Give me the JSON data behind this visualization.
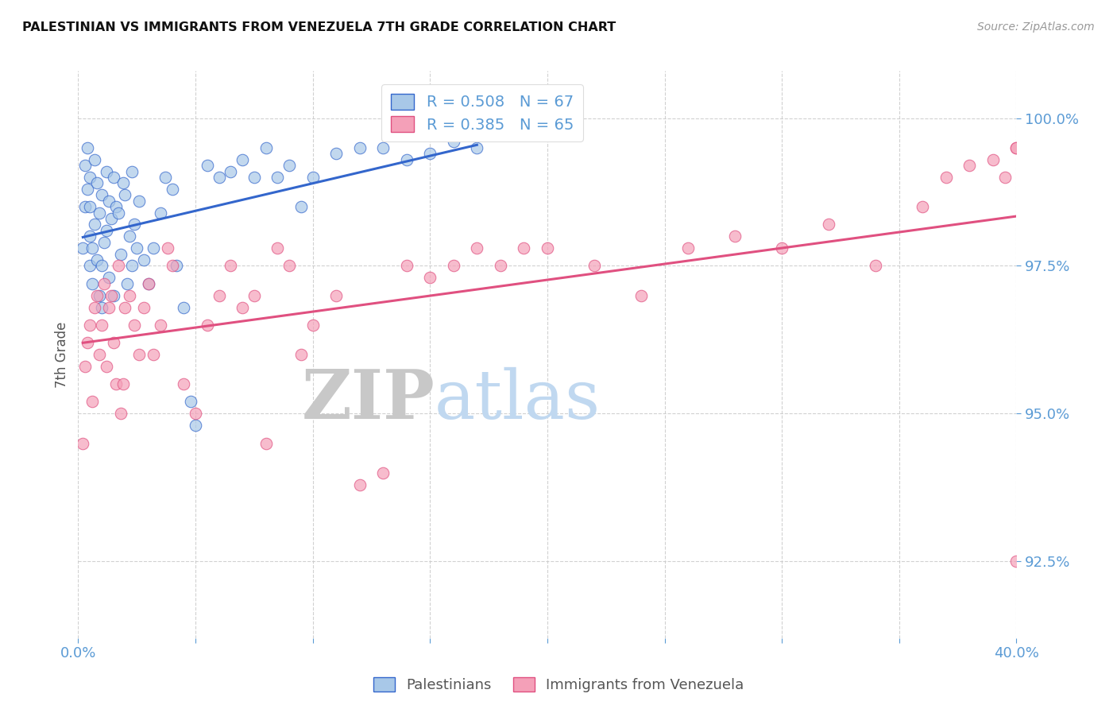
{
  "title": "PALESTINIAN VS IMMIGRANTS FROM VENEZUELA 7TH GRADE CORRELATION CHART",
  "source": "Source: ZipAtlas.com",
  "ylabel": "7th Grade",
  "ytick_vals": [
    92.5,
    95.0,
    97.5,
    100.0
  ],
  "xmin": 0.0,
  "xmax": 40.0,
  "ymin": 91.2,
  "ymax": 100.8,
  "blue_R": 0.508,
  "blue_N": 67,
  "pink_R": 0.385,
  "pink_N": 65,
  "legend_label_blue": "Palestinians",
  "legend_label_pink": "Immigrants from Venezuela",
  "dot_color_blue": "#a8c8e8",
  "dot_color_pink": "#f4a0b8",
  "line_color_blue": "#3366cc",
  "line_color_pink": "#e05080",
  "title_color": "#111111",
  "axis_label_color": "#5b9bd5",
  "watermark_zip": "ZIP",
  "watermark_atlas": "atlas",
  "watermark_color_zip": "#c8c8c8",
  "watermark_color_atlas": "#c0d8f0",
  "background_color": "#ffffff",
  "grid_color": "#cccccc",
  "blue_x": [
    0.2,
    0.3,
    0.3,
    0.4,
    0.4,
    0.5,
    0.5,
    0.5,
    0.5,
    0.6,
    0.6,
    0.7,
    0.7,
    0.8,
    0.8,
    0.9,
    0.9,
    1.0,
    1.0,
    1.0,
    1.1,
    1.2,
    1.2,
    1.3,
    1.3,
    1.4,
    1.5,
    1.5,
    1.6,
    1.7,
    1.8,
    1.9,
    2.0,
    2.1,
    2.2,
    2.3,
    2.3,
    2.4,
    2.5,
    2.6,
    2.8,
    3.0,
    3.2,
    3.5,
    3.7,
    4.0,
    4.2,
    4.5,
    4.8,
    5.0,
    5.5,
    6.0,
    6.5,
    7.0,
    7.5,
    8.0,
    8.5,
    9.0,
    9.5,
    10.0,
    11.0,
    12.0,
    13.0,
    14.0,
    15.0,
    16.0,
    17.0
  ],
  "blue_y": [
    97.8,
    98.5,
    99.2,
    98.8,
    99.5,
    97.5,
    98.0,
    98.5,
    99.0,
    97.2,
    97.8,
    98.2,
    99.3,
    97.6,
    98.9,
    97.0,
    98.4,
    96.8,
    97.5,
    98.7,
    97.9,
    98.1,
    99.1,
    97.3,
    98.6,
    98.3,
    97.0,
    99.0,
    98.5,
    98.4,
    97.7,
    98.9,
    98.7,
    97.2,
    98.0,
    97.5,
    99.1,
    98.2,
    97.8,
    98.6,
    97.6,
    97.2,
    97.8,
    98.4,
    99.0,
    98.8,
    97.5,
    96.8,
    95.2,
    94.8,
    99.2,
    99.0,
    99.1,
    99.3,
    99.0,
    99.5,
    99.0,
    99.2,
    98.5,
    99.0,
    99.4,
    99.5,
    99.5,
    99.3,
    99.4,
    99.6,
    99.5
  ],
  "pink_x": [
    0.2,
    0.3,
    0.4,
    0.5,
    0.6,
    0.7,
    0.8,
    0.9,
    1.0,
    1.1,
    1.2,
    1.3,
    1.4,
    1.5,
    1.6,
    1.7,
    1.8,
    1.9,
    2.0,
    2.2,
    2.4,
    2.6,
    2.8,
    3.0,
    3.2,
    3.5,
    3.8,
    4.0,
    4.5,
    5.0,
    5.5,
    6.0,
    6.5,
    7.0,
    7.5,
    8.0,
    8.5,
    9.0,
    9.5,
    10.0,
    11.0,
    12.0,
    13.0,
    14.0,
    15.0,
    16.0,
    17.0,
    18.0,
    19.0,
    20.0,
    22.0,
    24.0,
    26.0,
    28.0,
    30.0,
    32.0,
    34.0,
    36.0,
    37.0,
    38.0,
    39.0,
    39.5,
    40.0,
    40.0,
    40.0
  ],
  "pink_y": [
    94.5,
    95.8,
    96.2,
    96.5,
    95.2,
    96.8,
    97.0,
    96.0,
    96.5,
    97.2,
    95.8,
    96.8,
    97.0,
    96.2,
    95.5,
    97.5,
    95.0,
    95.5,
    96.8,
    97.0,
    96.5,
    96.0,
    96.8,
    97.2,
    96.0,
    96.5,
    97.8,
    97.5,
    95.5,
    95.0,
    96.5,
    97.0,
    97.5,
    96.8,
    97.0,
    94.5,
    97.8,
    97.5,
    96.0,
    96.5,
    97.0,
    93.8,
    94.0,
    97.5,
    97.3,
    97.5,
    97.8,
    97.5,
    97.8,
    97.8,
    97.5,
    97.0,
    97.8,
    98.0,
    97.8,
    98.2,
    97.5,
    98.5,
    99.0,
    99.2,
    99.3,
    99.0,
    99.5,
    99.5,
    92.5
  ]
}
